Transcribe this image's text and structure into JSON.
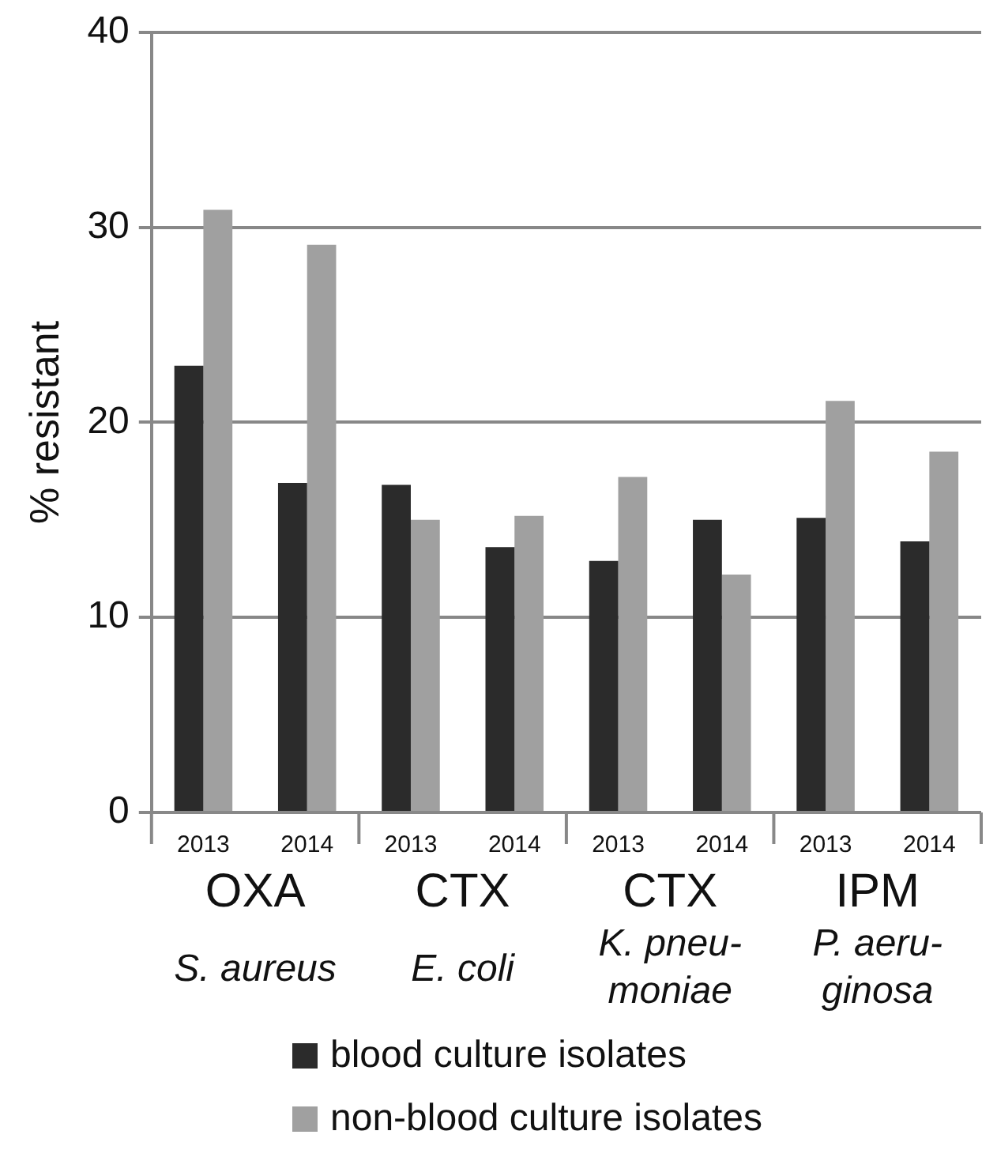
{
  "chart_data": {
    "type": "bar",
    "ylabel": "% resistant",
    "categories": [
      "2013",
      "2014",
      "2013",
      "2014",
      "2013",
      "2014",
      "2013",
      "2014"
    ],
    "series": [
      {
        "name": "blood culture isolates",
        "color": "#2b2b2b",
        "values": [
          22.9,
          16.9,
          16.8,
          13.6,
          12.9,
          15.0,
          15.1,
          13.9
        ]
      },
      {
        "name": "non-blood culture isolates",
        "color": "#a0a0a0",
        "values": [
          30.9,
          29.1,
          15.0,
          15.2,
          17.2,
          12.2,
          21.1,
          18.5
        ]
      }
    ],
    "annotations": [
      "OXA",
      "S. aureus",
      "CTX",
      "E. coli",
      "CTX",
      "K. pneu-\nmoniae",
      "IPM",
      "P. aeru-\nginosa"
    ],
    "ylim": [
      0,
      40
    ],
    "yticks": [
      0,
      10,
      20,
      30,
      40
    ],
    "grid": "y",
    "legend": "bottom"
  }
}
